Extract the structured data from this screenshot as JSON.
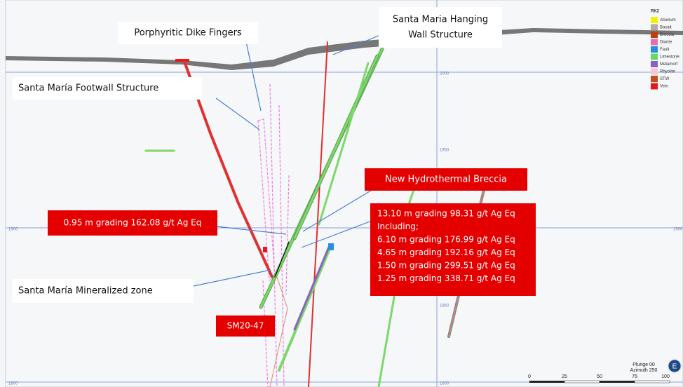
{
  "callouts": {
    "dike": "Porphyritic Dike Fingers",
    "hanging_wall": [
      "Santa Maria Hanging",
      "Wall Structure"
    ],
    "footwall": "Santa María Footwall Structure",
    "breccia": "New Hydrothermal Breccia",
    "interval": "0.95 m grading 162.08 g/t Ag Eq",
    "results": [
      "13.10 m grading 98.31 g/t Ag Eq",
      "Including;",
      "6.10 m grading 176.99 g/t Ag Eq",
      "4.65 m grading 192.16 g/t Ag Eq",
      "1.50 m grading 299.51 g/t Ag Eq",
      "1.25 m grading 338.71 g/t Ag Eq"
    ],
    "mineralized": "Santa María Mineralized zone",
    "hole": "SM20-47"
  },
  "grid_labels": {
    "a": "2000",
    "b": "1950",
    "c": "1900",
    "d": "1900",
    "e": "1850",
    "f": "1800",
    "g": "1800"
  },
  "legend": {
    "title": "RK2",
    "items": [
      {
        "name": "Alluvium",
        "color": "#f5f000"
      },
      {
        "name": "Basalt",
        "color": "#b0aaa8"
      },
      {
        "name": "Breccia",
        "color": "#b8420e"
      },
      {
        "name": "Diorite",
        "color": "#e070b0"
      },
      {
        "name": "Fault",
        "color": "#2a8ee0"
      },
      {
        "name": "Limestone",
        "color": "#66d86a"
      },
      {
        "name": "Metamorf",
        "color": "#8a62c0"
      },
      {
        "name": "Rhyolite",
        "color": "#f6c6d8"
      },
      {
        "name": "STW",
        "color": "#c0501c"
      },
      {
        "name": "Vein",
        "color": "#e81818"
      }
    ]
  },
  "scale": {
    "ticks": [
      "0",
      "25",
      "50",
      "75",
      "100"
    ],
    "plunge": "Plunge 00",
    "azimuth": "Azimuth 250",
    "compass": "E"
  }
}
